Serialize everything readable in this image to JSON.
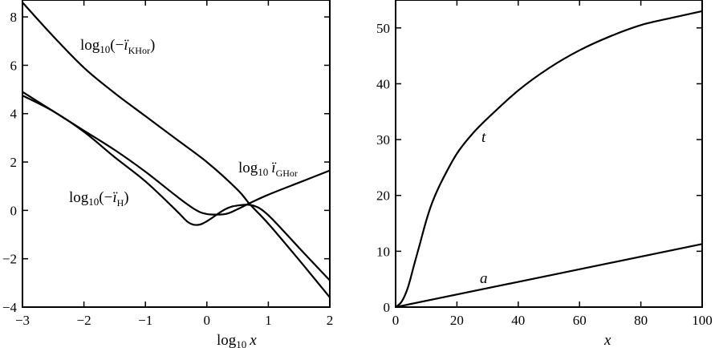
{
  "chart_data": [
    {
      "type": "line",
      "xlabel": "log10 x",
      "ylabel": "",
      "xlim": [
        -3,
        2
      ],
      "ylim": [
        -4,
        8.7
      ],
      "xticks": [
        -3,
        -2,
        -1,
        0,
        1,
        2
      ],
      "yticks": [
        -4,
        -2,
        0,
        2,
        4,
        6,
        8
      ],
      "xtick_labels": [
        "−3",
        "−2",
        "−1",
        "0",
        "1",
        "2"
      ],
      "ytick_labels": [
        "−4",
        "−2",
        "0",
        "2",
        "4",
        "6",
        "8"
      ],
      "annotations": [
        {
          "text": "log10(−ï_KHor)",
          "x": -2.1,
          "y": 6.8
        },
        {
          "text": "log10 ï_GHor",
          "x": 0.55,
          "y": 1.6
        },
        {
          "text": "log10(−ï_H)",
          "x": -2.3,
          "y": 0.4
        }
      ],
      "series": [
        {
          "name": "log10(−ï_KHor)",
          "x": [
            -3.0,
            -2.5,
            -2.0,
            -1.5,
            -1.0,
            -0.5,
            0.0,
            0.5,
            0.7,
            1.0,
            1.5,
            2.0
          ],
          "y": [
            8.6,
            7.2,
            5.9,
            4.85,
            3.9,
            2.95,
            2.0,
            0.85,
            0.25,
            -0.55,
            -2.05,
            -3.6
          ]
        },
        {
          "name": "log10 ï_GHor",
          "x": [
            -3.0,
            -2.5,
            -2.0,
            -1.5,
            -1.0,
            -0.5,
            -0.2,
            0.0,
            0.3,
            0.5,
            0.7,
            1.0,
            1.5,
            2.0
          ],
          "y": [
            4.9,
            4.1,
            3.3,
            2.5,
            1.6,
            0.6,
            0.05,
            -0.15,
            -0.15,
            0.05,
            0.3,
            0.65,
            1.15,
            1.65
          ]
        },
        {
          "name": "log10(−ï_H)",
          "x": [
            -3.0,
            -2.5,
            -2.0,
            -1.5,
            -1.0,
            -0.5,
            -0.3,
            -0.15,
            0.0,
            0.3,
            0.5,
            0.75,
            1.0,
            1.5,
            2.0
          ],
          "y": [
            4.75,
            4.1,
            3.25,
            2.2,
            1.2,
            0.0,
            -0.5,
            -0.6,
            -0.45,
            0.05,
            0.2,
            0.2,
            -0.2,
            -1.55,
            -2.9
          ]
        }
      ]
    },
    {
      "type": "line",
      "xlabel": "x",
      "ylabel": "",
      "xlim": [
        0,
        100
      ],
      "ylim": [
        0,
        55
      ],
      "xticks": [
        0,
        20,
        40,
        60,
        80,
        100
      ],
      "yticks": [
        0,
        10,
        20,
        30,
        40,
        50
      ],
      "xtick_labels": [
        "0",
        "20",
        "40",
        "60",
        "80",
        "100"
      ],
      "ytick_labels": [
        "0",
        "10",
        "20",
        "30",
        "40",
        "50"
      ],
      "annotations": [
        {
          "text": "t",
          "x": 29,
          "y": 30
        },
        {
          "text": "a",
          "x": 29,
          "y": 4.5
        }
      ],
      "series": [
        {
          "name": "t",
          "x": [
            0,
            2,
            4,
            6,
            8,
            10,
            12,
            15,
            20,
            25,
            30,
            40,
            50,
            60,
            70,
            80,
            90,
            100
          ],
          "y": [
            0,
            1.0,
            3.5,
            7.5,
            11.5,
            15.5,
            18.8,
            22.5,
            27.5,
            31.0,
            33.8,
            38.8,
            42.8,
            46.0,
            48.5,
            50.5,
            51.8,
            53.0
          ]
        },
        {
          "name": "a",
          "x": [
            0,
            100
          ],
          "y": [
            0,
            11.3
          ]
        }
      ]
    }
  ]
}
